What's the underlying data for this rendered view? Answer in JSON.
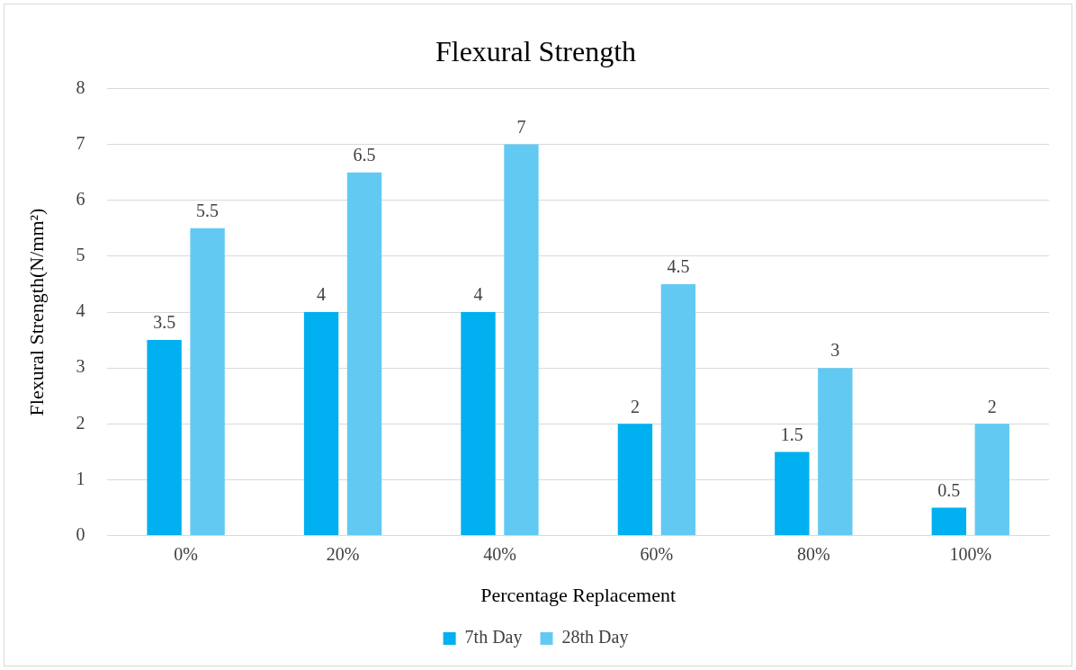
{
  "chart_data": {
    "type": "bar",
    "title": "Flexural Strength",
    "xlabel": "Percentage Replacement",
    "ylabel": "Flexural Strength(N/mm²)",
    "categories": [
      "0%",
      "20%",
      "40%",
      "60%",
      "80%",
      "100%"
    ],
    "series": [
      {
        "name": "7th Day",
        "color": "#00b0f0",
        "values": [
          3.5,
          4,
          4,
          2,
          1.5,
          0.5
        ]
      },
      {
        "name": "28th Day",
        "color": "#62caf2",
        "values": [
          5.5,
          6.5,
          7,
          4.5,
          3,
          2
        ]
      }
    ],
    "ylim": [
      0,
      8
    ],
    "yticks": [
      0,
      1,
      2,
      3,
      4,
      5,
      6,
      7,
      8
    ],
    "grid": "y",
    "legend": "bottom",
    "data_labels": true
  }
}
